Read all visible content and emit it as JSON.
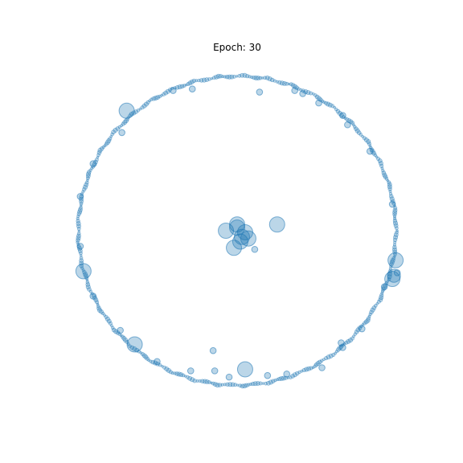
{
  "chart_data": {
    "type": "scatter",
    "title": "Epoch: 30",
    "xlim": [
      -1.12,
      1.12
    ],
    "ylim": [
      -1.12,
      1.12
    ],
    "axis_visible": false,
    "grid": false,
    "legend": "none",
    "marker_color": "#1f77b4",
    "marker_alpha": 0.3,
    "ring_points": 420,
    "ring_radius": 1.0,
    "large_points": [
      {
        "x": -0.69,
        "y": 0.77,
        "s": 1.0
      },
      {
        "x": -0.96,
        "y": -0.26,
        "s": 1.0
      },
      {
        "x": -0.64,
        "y": -0.73,
        "s": 1.0
      },
      {
        "x": 0.05,
        "y": -0.89,
        "s": 1.0
      },
      {
        "x": 0.99,
        "y": -0.19,
        "s": 1.0
      },
      {
        "x": 0.97,
        "y": -0.31,
        "s": 1.0
      },
      {
        "x": 0.98,
        "y": -0.29,
        "s": 0.85
      },
      {
        "x": 0.0,
        "y": 0.04,
        "s": 1.0
      },
      {
        "x": -0.07,
        "y": 0.0,
        "s": 1.0
      },
      {
        "x": 0.05,
        "y": -0.01,
        "s": 1.0
      },
      {
        "x": 0.02,
        "y": -0.07,
        "s": 1.0
      },
      {
        "x": -0.02,
        "y": -0.11,
        "s": 1.0
      },
      {
        "x": 0.07,
        "y": -0.05,
        "s": 1.0
      },
      {
        "x": 0.03,
        "y": -0.04,
        "s": 1.0
      },
      {
        "x": 0.25,
        "y": 0.04,
        "s": 1.0
      },
      {
        "x": 0.0,
        "y": 0.02,
        "s": 1.0
      }
    ],
    "medium_points": [
      {
        "x": 0.14,
        "y": 0.89
      },
      {
        "x": 0.41,
        "y": 0.88
      },
      {
        "x": 0.36,
        "y": 0.9
      },
      {
        "x": 0.51,
        "y": 0.82
      },
      {
        "x": 0.69,
        "y": 0.68
      },
      {
        "x": 0.83,
        "y": 0.51
      },
      {
        "x": 0.97,
        "y": 0.17
      },
      {
        "x": 0.92,
        "y": -0.36
      },
      {
        "x": 0.78,
        "y": -0.63
      },
      {
        "x": 0.66,
        "y": -0.75
      },
      {
        "x": 0.31,
        "y": -0.92
      },
      {
        "x": 0.19,
        "y": -0.93
      },
      {
        "x": -0.05,
        "y": -0.94
      },
      {
        "x": -0.14,
        "y": -0.9
      },
      {
        "x": -0.29,
        "y": -0.9
      },
      {
        "x": -0.5,
        "y": -0.84
      },
      {
        "x": -0.73,
        "y": -0.64
      },
      {
        "x": -0.9,
        "y": -0.42
      },
      {
        "x": -0.98,
        "y": -0.1
      },
      {
        "x": -0.98,
        "y": 0.22
      },
      {
        "x": -0.9,
        "y": 0.43
      },
      {
        "x": -0.72,
        "y": 0.63
      },
      {
        "x": -0.4,
        "y": 0.9
      },
      {
        "x": -0.28,
        "y": 0.91
      },
      {
        "x": 0.53,
        "y": -0.88
      },
      {
        "x": 0.11,
        "y": -0.12
      },
      {
        "x": -0.15,
        "y": -0.77
      },
      {
        "x": 0.65,
        "y": -0.72
      },
      {
        "x": 1.0,
        "y": -0.27
      },
      {
        "x": 0.66,
        "y": 0.74
      }
    ]
  }
}
